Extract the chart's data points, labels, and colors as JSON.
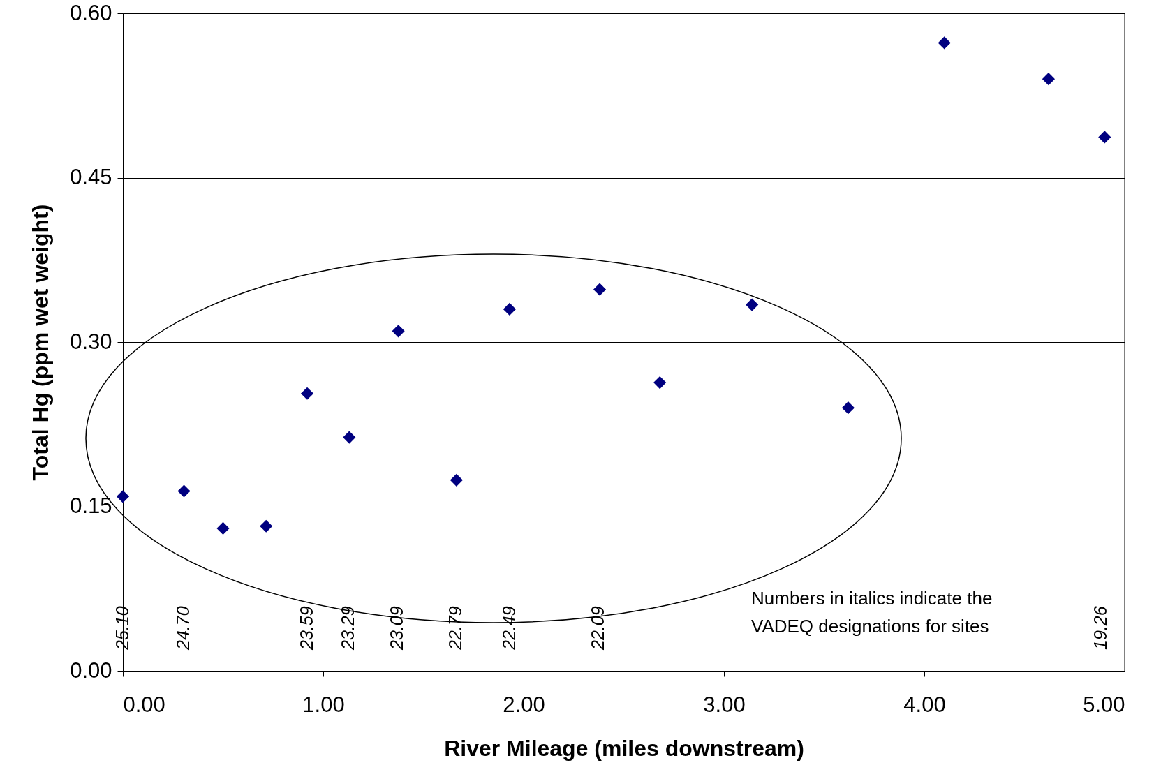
{
  "chart_data": {
    "type": "scatter",
    "xlabel": "River Mileage (miles downstream)",
    "ylabel": "Total Hg (ppm wet weight)",
    "x": [
      0,
      0.305,
      0.5,
      0.715,
      0.92,
      1.13,
      1.375,
      1.665,
      1.93,
      2.38,
      2.68,
      3.14,
      3.62,
      4.1,
      4.62,
      4.9
    ],
    "series": [
      {
        "color": "#000080",
        "values": [
          0.159,
          0.164,
          0.13,
          0.132,
          0.253,
          0.213,
          0.31,
          0.174,
          0.33,
          0.348,
          0.263,
          0.334,
          0.24,
          0.573,
          0.54,
          0.487
        ]
      }
    ],
    "marker": "diamond",
    "grid": "y",
    "legend": false,
    "xlim": [
      0,
      5
    ],
    "ylim": [
      0,
      0.6
    ],
    "xticks": [
      {
        "value": 0,
        "label": "0.00"
      },
      {
        "value": 1,
        "label": "1.00"
      },
      {
        "value": 2,
        "label": "2.00"
      },
      {
        "value": 3,
        "label": "3.00"
      },
      {
        "value": 4,
        "label": "4.00"
      },
      {
        "value": 5,
        "label": "5.00"
      }
    ],
    "yticks": [
      {
        "value": 0,
        "label": "0.00"
      },
      {
        "value": 0.15,
        "label": "0.15"
      },
      {
        "value": 0.3,
        "label": "0.30"
      },
      {
        "value": 0.45,
        "label": "0.45"
      },
      {
        "value": 0.6,
        "label": "0.60"
      }
    ],
    "annotations": [
      "25.10",
      "24.70",
      "23.59",
      "23.29",
      "23.09",
      "22.79",
      "22.49",
      "22.09",
      "19.26",
      "Numbers in italics indicate the\nVADEQ designations for sites"
    ]
  }
}
